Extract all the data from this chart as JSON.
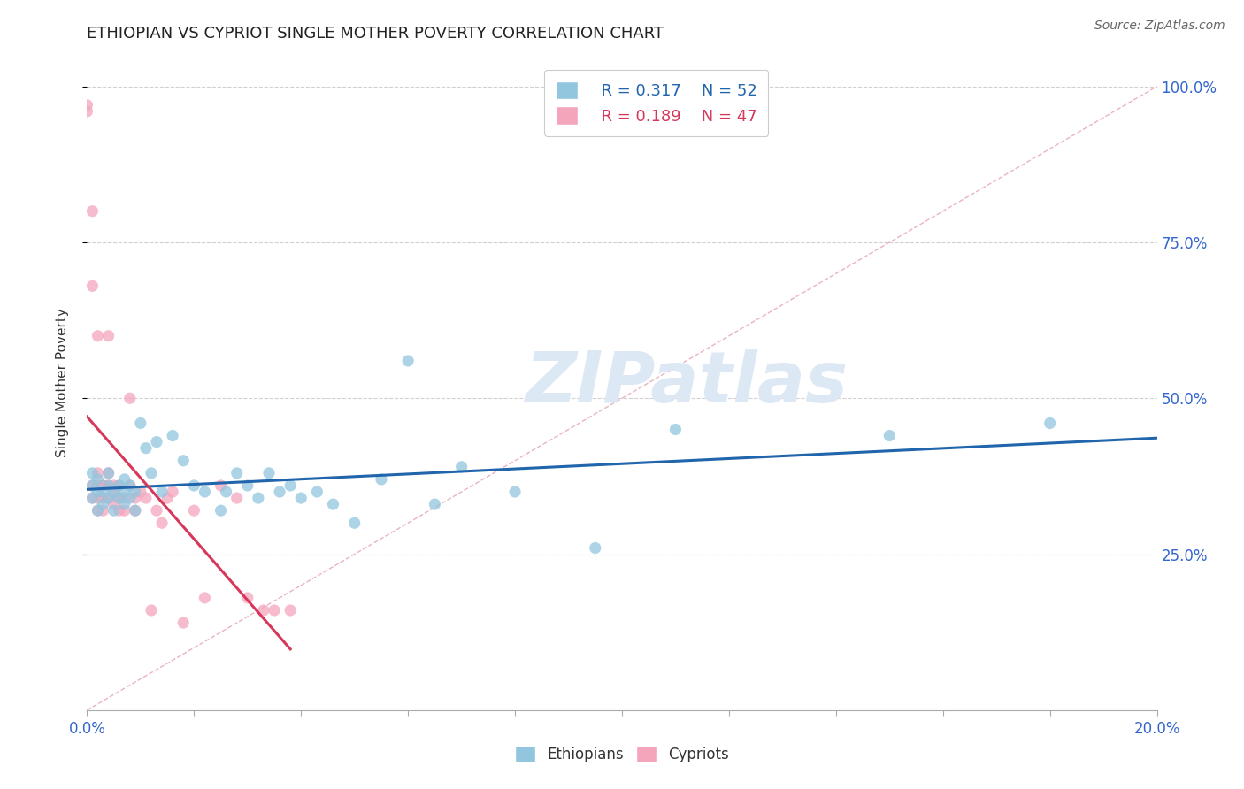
{
  "title": "ETHIOPIAN VS CYPRIOT SINGLE MOTHER POVERTY CORRELATION CHART",
  "source": "Source: ZipAtlas.com",
  "ylabel": "Single Mother Poverty",
  "ytick_labels": [
    "100.0%",
    "75.0%",
    "50.0%",
    "25.0%"
  ],
  "ytick_values": [
    1.0,
    0.75,
    0.5,
    0.25
  ],
  "xrange": [
    0.0,
    0.2
  ],
  "yrange": [
    0.0,
    1.05
  ],
  "legend_r_ethiopians": "R = 0.317",
  "legend_n_ethiopians": "N = 52",
  "legend_r_cypriots": "R = 0.189",
  "legend_n_cypriots": "N = 47",
  "blue_color": "#92c5de",
  "pink_color": "#f4a5bb",
  "trend_blue": "#2166ac",
  "trend_pink": "#d6375a",
  "diag_color": "#e8b4c0",
  "ethiopian_scatter_x": [
    0.001,
    0.001,
    0.001,
    0.002,
    0.002,
    0.002,
    0.003,
    0.003,
    0.004,
    0.004,
    0.004,
    0.005,
    0.005,
    0.006,
    0.006,
    0.007,
    0.007,
    0.007,
    0.008,
    0.008,
    0.009,
    0.009,
    0.01,
    0.011,
    0.012,
    0.013,
    0.014,
    0.016,
    0.018,
    0.02,
    0.022,
    0.025,
    0.026,
    0.028,
    0.03,
    0.032,
    0.034,
    0.036,
    0.038,
    0.04,
    0.043,
    0.046,
    0.05,
    0.055,
    0.06,
    0.065,
    0.07,
    0.08,
    0.095,
    0.11,
    0.15,
    0.18
  ],
  "ethiopian_scatter_y": [
    0.34,
    0.36,
    0.38,
    0.32,
    0.35,
    0.37,
    0.33,
    0.35,
    0.34,
    0.36,
    0.38,
    0.32,
    0.35,
    0.34,
    0.36,
    0.35,
    0.33,
    0.37,
    0.34,
    0.36,
    0.35,
    0.32,
    0.46,
    0.42,
    0.38,
    0.43,
    0.35,
    0.44,
    0.4,
    0.36,
    0.35,
    0.32,
    0.35,
    0.38,
    0.36,
    0.34,
    0.38,
    0.35,
    0.36,
    0.34,
    0.35,
    0.33,
    0.3,
    0.37,
    0.56,
    0.33,
    0.39,
    0.35,
    0.26,
    0.45,
    0.44,
    0.46
  ],
  "cypriot_scatter_x": [
    0.0,
    0.0,
    0.001,
    0.001,
    0.001,
    0.001,
    0.002,
    0.002,
    0.002,
    0.002,
    0.002,
    0.003,
    0.003,
    0.003,
    0.003,
    0.004,
    0.004,
    0.004,
    0.004,
    0.005,
    0.005,
    0.005,
    0.006,
    0.006,
    0.006,
    0.007,
    0.007,
    0.008,
    0.008,
    0.009,
    0.009,
    0.01,
    0.011,
    0.012,
    0.013,
    0.014,
    0.015,
    0.016,
    0.018,
    0.02,
    0.022,
    0.025,
    0.028,
    0.03,
    0.033,
    0.035,
    0.038
  ],
  "cypriot_scatter_y": [
    0.97,
    0.96,
    0.8,
    0.68,
    0.36,
    0.34,
    0.6,
    0.38,
    0.36,
    0.34,
    0.32,
    0.36,
    0.34,
    0.36,
    0.32,
    0.6,
    0.38,
    0.36,
    0.34,
    0.35,
    0.33,
    0.36,
    0.34,
    0.36,
    0.32,
    0.34,
    0.32,
    0.5,
    0.36,
    0.34,
    0.32,
    0.35,
    0.34,
    0.16,
    0.32,
    0.3,
    0.34,
    0.35,
    0.14,
    0.32,
    0.18,
    0.36,
    0.34,
    0.18,
    0.16,
    0.16,
    0.16
  ],
  "watermark_text": "ZIPatlas",
  "background_color": "#ffffff",
  "title_fontsize": 13,
  "axis_label_fontsize": 11,
  "tick_fontsize": 12
}
